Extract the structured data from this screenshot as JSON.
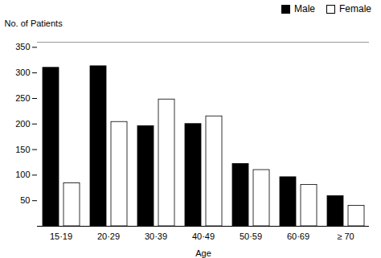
{
  "chart_data": {
    "type": "bar",
    "categories": [
      "15·19",
      "20·29",
      "30·39",
      "40·49",
      "50·59",
      "60·69",
      "≥ 70"
    ],
    "series": [
      {
        "name": "Male",
        "color": "#000000",
        "values": [
          310,
          313,
          196,
          200,
          122,
          96,
          59
        ]
      },
      {
        "name": "Female",
        "color": "#ffffff",
        "values": [
          84,
          204,
          248,
          215,
          110,
          81,
          40
        ]
      }
    ],
    "xlabel": "Age",
    "ylabel": "No. of Patients",
    "ylim": [
      0,
      360
    ],
    "yticks": [
      50,
      100,
      150,
      200,
      250,
      300,
      350
    ],
    "legend": "upper right"
  }
}
